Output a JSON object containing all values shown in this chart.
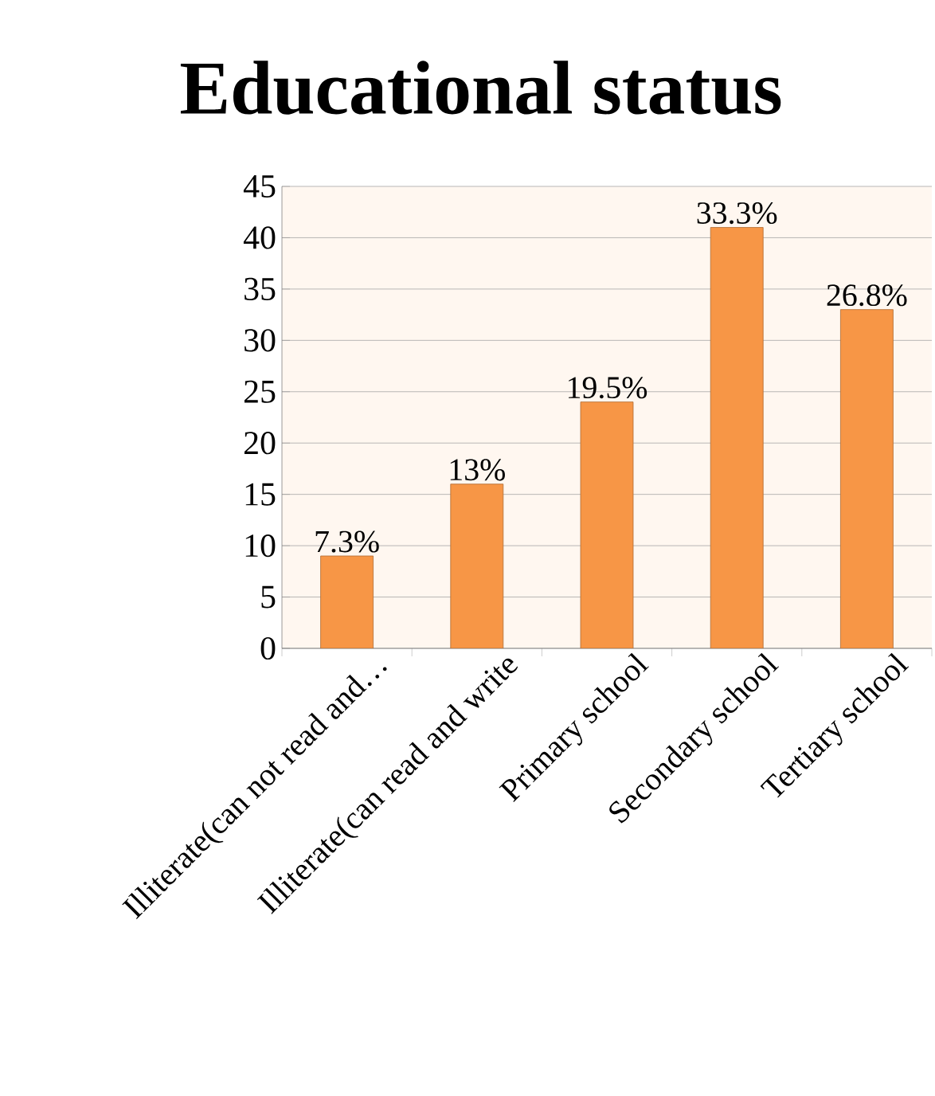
{
  "chart_data": {
    "type": "bar",
    "title": "Educational status",
    "categories": [
      "Illiterate(can not read and…",
      "Illiterate(can read and write",
      "Primary school",
      "Secondary school",
      "Tertiary school"
    ],
    "values": [
      9,
      16,
      24,
      41,
      33
    ],
    "annotations": [
      "7.3%",
      "13%",
      "19.5%",
      "33.3%",
      "26.8%"
    ],
    "color": "#f79646",
    "ylim": [
      0,
      45
    ],
    "yticks": [
      0,
      5,
      10,
      15,
      20,
      25,
      30,
      35,
      40,
      45
    ],
    "grid": "y"
  }
}
